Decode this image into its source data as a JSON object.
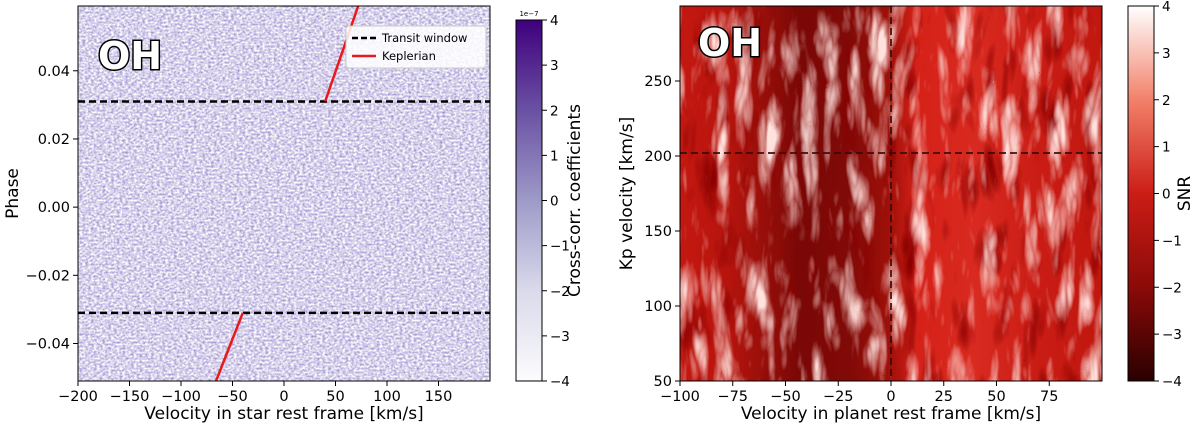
{
  "chart_data": [
    {
      "type": "heatmap",
      "panel_label": "OH",
      "xlabel": "Velocity in star rest frame [km/s]",
      "ylabel": "Phase",
      "xlim": [
        -200,
        200
      ],
      "ylim": [
        -0.051,
        0.059
      ],
      "xticks": [
        -200,
        -150,
        -100,
        -50,
        0,
        50,
        100,
        150
      ],
      "xtick_labels": [
        "−200",
        "−150",
        "−100",
        "−50",
        "0",
        "50",
        "100",
        "150"
      ],
      "yticks": [
        -0.04,
        -0.02,
        0.0,
        0.02,
        0.04
      ],
      "ytick_labels": [
        "−0.04",
        "−0.02",
        "0.00",
        "0.02",
        "0.04"
      ],
      "colorbar": {
        "label": "Cross-corr. coefficients",
        "range": [
          -4,
          4
        ],
        "offset_text": "1e−7",
        "ticks": [
          -4,
          -3,
          -2,
          -1,
          0,
          1,
          2,
          3,
          4
        ],
        "tick_labels": [
          "−4",
          "−3",
          "−2",
          "−1",
          "0",
          "1",
          "2",
          "3",
          "4"
        ],
        "colormap": "Purples",
        "colors": [
          "#ffffff",
          "#3f007d"
        ]
      },
      "transit_window_phases": [
        -0.031,
        0.031
      ],
      "keplerian_segments": [
        {
          "x": [
            40,
            72
          ],
          "y": [
            0.031,
            0.059
          ]
        },
        {
          "x": [
            -66,
            -40
          ],
          "y": [
            -0.051,
            -0.031
          ]
        }
      ],
      "legend": {
        "placement": "top-right",
        "entries": [
          {
            "label": "Transit window",
            "style": "dashed",
            "color": "#000000"
          },
          {
            "label": "Keplerian",
            "style": "solid",
            "color": "#e8191a"
          }
        ]
      }
    },
    {
      "type": "heatmap",
      "panel_label": "OH",
      "xlabel": "Velocity in planet rest frame [km/s]",
      "ylabel": "Kp velocity [km/s]",
      "xlim": [
        -100,
        100
      ],
      "ylim": [
        50,
        300
      ],
      "xticks": [
        -100,
        -75,
        -50,
        -25,
        0,
        25,
        50,
        75
      ],
      "xtick_labels": [
        "−100",
        "−75",
        "−50",
        "−25",
        "0",
        "25",
        "50",
        "75"
      ],
      "yticks": [
        50,
        100,
        150,
        200,
        250
      ],
      "ytick_labels": [
        "50",
        "100",
        "150",
        "200",
        "250"
      ],
      "expected_kp": 202,
      "expected_v": 0,
      "colorbar": {
        "label": "SNR",
        "range": [
          -4,
          4
        ],
        "ticks": [
          -4,
          -3,
          -2,
          -1,
          0,
          1,
          2,
          3,
          4
        ],
        "tick_labels": [
          "−4",
          "−3",
          "−2",
          "−1",
          "0",
          "1",
          "2",
          "3",
          "4"
        ],
        "colormap": "Reds_r",
        "colors": [
          "#330000",
          "#c8140e",
          "#ffffff"
        ]
      }
    }
  ]
}
